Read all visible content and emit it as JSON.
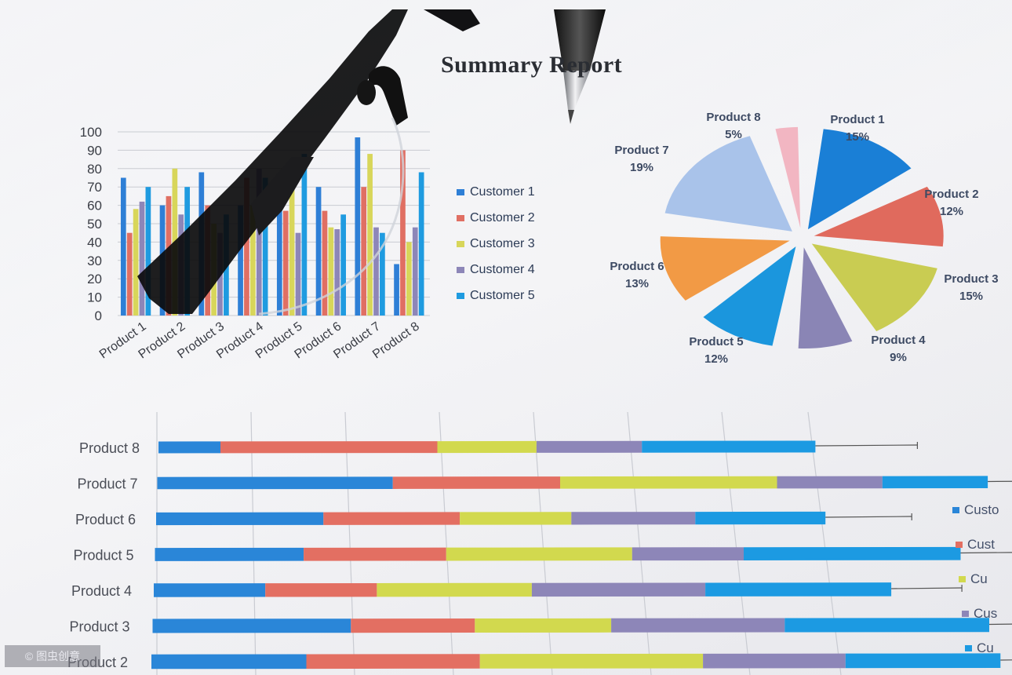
{
  "document": {
    "title": "Summary Report"
  },
  "chart_data": [
    {
      "type": "bar",
      "categories": [
        "Product 1",
        "Product 2",
        "Product 3",
        "Product 4",
        "Product 5",
        "Product 6",
        "Product 7",
        "Product 8"
      ],
      "series": [
        {
          "name": "Customer 1",
          "color": "#2e7fd6",
          "values": [
            75,
            60,
            78,
            60,
            58,
            70,
            97,
            28
          ]
        },
        {
          "name": "Customer 2",
          "color": "#e06f63",
          "values": [
            45,
            65,
            60,
            75,
            57,
            57,
            70,
            90
          ]
        },
        {
          "name": "Customer 3",
          "color": "#d8d65a",
          "values": [
            58,
            80,
            50,
            60,
            78,
            48,
            88,
            40
          ]
        },
        {
          "name": "Customer 4",
          "color": "#8d86b8",
          "values": [
            62,
            55,
            45,
            80,
            45,
            47,
            48,
            48
          ]
        },
        {
          "name": "Customer 5",
          "color": "#1f9be0",
          "values": [
            70,
            70,
            55,
            75,
            88,
            55,
            45,
            78
          ]
        }
      ],
      "yticks": [
        "0",
        "10",
        "20",
        "30",
        "40",
        "50",
        "60",
        "70",
        "80",
        "90",
        "100"
      ],
      "ylim": [
        0,
        100
      ],
      "legend": "right",
      "grid": true
    },
    {
      "type": "pie",
      "slices": [
        {
          "label": "Product 1",
          "pct_label": "15%",
          "value": 15,
          "color": "#1a7fd6"
        },
        {
          "label": "Product 2",
          "pct_label": "12%",
          "value": 12,
          "color": "#e06a5d"
        },
        {
          "label": "Product 3",
          "pct_label": "15%",
          "value": 15,
          "color": "#c9cc52"
        },
        {
          "label": "Product 4",
          "pct_label": "9%",
          "value": 9,
          "color": "#8a85b5"
        },
        {
          "label": "Product 5",
          "pct_label": "12%",
          "value": 12,
          "color": "#1b96dd"
        },
        {
          "label": "Product 6",
          "pct_label": "13%",
          "value": 13,
          "color": "#f29a45"
        },
        {
          "label": "Product 7",
          "pct_label": "19%",
          "value": 19,
          "color": "#a9c3ea"
        },
        {
          "label": "Product 8",
          "pct_label": "5%",
          "value": 5,
          "color": "#f2b6c2"
        }
      ]
    },
    {
      "type": "bar",
      "orientation": "horizontal",
      "stacked": true,
      "categories": [
        "Product 8",
        "Product 7",
        "Product 6",
        "Product 5",
        "Product 4",
        "Product 3",
        "Product 2"
      ],
      "series": [
        {
          "name": "Customer 1",
          "color": "#2a86d8",
          "values": [
            10,
            38,
            27,
            24,
            18,
            32,
            25
          ]
        },
        {
          "name": "Customer 2",
          "color": "#e36f62",
          "values": [
            35,
            27,
            22,
            23,
            18,
            20,
            28
          ]
        },
        {
          "name": "Customer 3",
          "color": "#d2d94e",
          "values": [
            16,
            35,
            18,
            30,
            25,
            22,
            36
          ]
        },
        {
          "name": "Customer 4",
          "color": "#8d86b8",
          "values": [
            17,
            17,
            20,
            18,
            28,
            28,
            23
          ]
        },
        {
          "name": "Customer 5",
          "color": "#1c9ae2",
          "values": [
            28,
            17,
            21,
            35,
            30,
            33,
            25
          ]
        }
      ],
      "legend": "right",
      "legend_visible_text": [
        "Custo",
        "Cust",
        "Cu",
        "Cus",
        "Cu"
      ],
      "grid": true
    }
  ],
  "watermark": "© 图虫创意"
}
